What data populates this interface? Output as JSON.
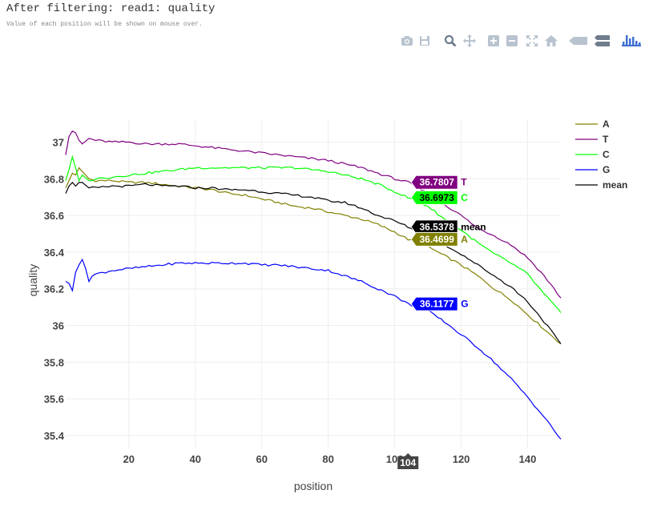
{
  "header": {
    "title": "After filtering: read1: quality",
    "subtitle": "Value of each position will be shown on mouse over."
  },
  "modebar": [
    {
      "name": "camera-icon"
    },
    {
      "name": "save-icon"
    },
    {
      "name": "zoom-icon"
    },
    {
      "name": "pan-icon"
    },
    {
      "name": "zoom-in-icon"
    },
    {
      "name": "zoom-out-icon"
    },
    {
      "name": "autoscale-icon"
    },
    {
      "name": "home-icon"
    },
    {
      "name": "hover-closest-icon"
    },
    {
      "name": "hover-compare-icon"
    },
    {
      "name": "plotly-logo-icon"
    }
  ],
  "chart_data": {
    "type": "line",
    "xlabel": "position",
    "ylabel": "quality",
    "xlim": [
      1,
      150
    ],
    "ylim": [
      35.33,
      37.12
    ],
    "x_ticks": [
      20,
      40,
      60,
      80,
      100,
      120,
      140
    ],
    "y_ticks": [
      35.4,
      35.6,
      35.8,
      36,
      36.2,
      36.4,
      36.6,
      36.8,
      37
    ],
    "y_tick_labels": [
      "35.4",
      "35.6",
      "35.8",
      "36",
      "36.2",
      "36.4",
      "36.6",
      "36.8",
      "37"
    ],
    "grid": true,
    "legend_position": "top-right",
    "series": [
      {
        "name": "A",
        "color": "#808000",
        "points": [
          [
            1,
            36.75
          ],
          [
            2,
            36.79
          ],
          [
            3,
            36.83
          ],
          [
            4,
            36.82
          ],
          [
            5,
            36.86
          ],
          [
            6,
            36.84
          ],
          [
            8,
            36.8
          ],
          [
            10,
            36.79
          ],
          [
            15,
            36.79
          ],
          [
            20,
            36.78
          ],
          [
            25,
            36.78
          ],
          [
            30,
            36.77
          ],
          [
            35,
            36.76
          ],
          [
            40,
            36.75
          ],
          [
            45,
            36.74
          ],
          [
            50,
            36.72
          ],
          [
            55,
            36.71
          ],
          [
            60,
            36.69
          ],
          [
            65,
            36.67
          ],
          [
            70,
            36.65
          ],
          [
            75,
            36.64
          ],
          [
            80,
            36.62
          ],
          [
            85,
            36.6
          ],
          [
            90,
            36.58
          ],
          [
            95,
            36.55
          ],
          [
            100,
            36.51
          ],
          [
            104,
            36.4699
          ],
          [
            110,
            36.43
          ],
          [
            115,
            36.38
          ],
          [
            120,
            36.33
          ],
          [
            125,
            36.27
          ],
          [
            130,
            36.2
          ],
          [
            135,
            36.14
          ],
          [
            140,
            36.06
          ],
          [
            145,
            35.98
          ],
          [
            150,
            35.9
          ]
        ]
      },
      {
        "name": "T",
        "color": "#800080",
        "points": [
          [
            1,
            36.93
          ],
          [
            2,
            37.03
          ],
          [
            3,
            37.06
          ],
          [
            4,
            37.05
          ],
          [
            5,
            37.01
          ],
          [
            6,
            36.99
          ],
          [
            8,
            37.02
          ],
          [
            10,
            37.01
          ],
          [
            15,
            37.0
          ],
          [
            20,
            37.0
          ],
          [
            25,
            36.99
          ],
          [
            30,
            36.99
          ],
          [
            35,
            36.99
          ],
          [
            40,
            36.98
          ],
          [
            45,
            36.97
          ],
          [
            50,
            36.96
          ],
          [
            55,
            36.95
          ],
          [
            60,
            36.94
          ],
          [
            65,
            36.93
          ],
          [
            70,
            36.92
          ],
          [
            75,
            36.91
          ],
          [
            80,
            36.9
          ],
          [
            85,
            36.88
          ],
          [
            90,
            36.86
          ],
          [
            95,
            36.83
          ],
          [
            100,
            36.8
          ],
          [
            104,
            36.7807
          ],
          [
            110,
            36.72
          ],
          [
            115,
            36.66
          ],
          [
            120,
            36.6
          ],
          [
            125,
            36.53
          ],
          [
            130,
            36.49
          ],
          [
            135,
            36.44
          ],
          [
            140,
            36.37
          ],
          [
            145,
            36.27
          ],
          [
            150,
            36.15
          ]
        ]
      },
      {
        "name": "C",
        "color": "#00ff00",
        "points": [
          [
            1,
            36.79
          ],
          [
            2,
            36.85
          ],
          [
            3,
            36.92
          ],
          [
            4,
            36.86
          ],
          [
            5,
            36.79
          ],
          [
            6,
            36.82
          ],
          [
            8,
            36.79
          ],
          [
            10,
            36.8
          ],
          [
            15,
            36.81
          ],
          [
            20,
            36.82
          ],
          [
            25,
            36.83
          ],
          [
            30,
            36.84
          ],
          [
            35,
            36.85
          ],
          [
            40,
            36.86
          ],
          [
            45,
            36.86
          ],
          [
            50,
            36.86
          ],
          [
            55,
            36.86
          ],
          [
            60,
            36.86
          ],
          [
            65,
            36.86
          ],
          [
            70,
            36.86
          ],
          [
            75,
            36.85
          ],
          [
            80,
            36.84
          ],
          [
            85,
            36.82
          ],
          [
            90,
            36.8
          ],
          [
            95,
            36.77
          ],
          [
            100,
            36.73
          ],
          [
            104,
            36.6973
          ],
          [
            110,
            36.65
          ],
          [
            115,
            36.58
          ],
          [
            120,
            36.52
          ],
          [
            125,
            36.45
          ],
          [
            130,
            36.39
          ],
          [
            135,
            36.34
          ],
          [
            140,
            36.28
          ],
          [
            145,
            36.17
          ],
          [
            150,
            36.07
          ]
        ]
      },
      {
        "name": "G",
        "color": "#0000ff",
        "points": [
          [
            1,
            36.24
          ],
          [
            2,
            36.23
          ],
          [
            3,
            36.19
          ],
          [
            4,
            36.29
          ],
          [
            5,
            36.33
          ],
          [
            6,
            36.36
          ],
          [
            7,
            36.31
          ],
          [
            8,
            36.24
          ],
          [
            9,
            36.27
          ],
          [
            10,
            36.28
          ],
          [
            15,
            36.3
          ],
          [
            20,
            36.31
          ],
          [
            25,
            36.32
          ],
          [
            30,
            36.33
          ],
          [
            35,
            36.34
          ],
          [
            40,
            36.34
          ],
          [
            45,
            36.34
          ],
          [
            50,
            36.34
          ],
          [
            55,
            36.34
          ],
          [
            60,
            36.33
          ],
          [
            65,
            36.33
          ],
          [
            70,
            36.32
          ],
          [
            75,
            36.31
          ],
          [
            80,
            36.3
          ],
          [
            85,
            36.27
          ],
          [
            90,
            36.24
          ],
          [
            95,
            36.2
          ],
          [
            100,
            36.16
          ],
          [
            104,
            36.1177
          ],
          [
            110,
            36.08
          ],
          [
            115,
            36.02
          ],
          [
            120,
            35.95
          ],
          [
            125,
            35.88
          ],
          [
            130,
            35.8
          ],
          [
            135,
            35.71
          ],
          [
            140,
            35.61
          ],
          [
            145,
            35.5
          ],
          [
            150,
            35.38
          ]
        ]
      },
      {
        "name": "mean",
        "color": "#000000",
        "points": [
          [
            1,
            36.72
          ],
          [
            2,
            36.76
          ],
          [
            3,
            36.78
          ],
          [
            4,
            36.76
          ],
          [
            5,
            36.78
          ],
          [
            6,
            36.78
          ],
          [
            8,
            36.75
          ],
          [
            10,
            36.75
          ],
          [
            15,
            36.76
          ],
          [
            20,
            36.76
          ],
          [
            25,
            36.77
          ],
          [
            30,
            36.76
          ],
          [
            35,
            36.76
          ],
          [
            40,
            36.75
          ],
          [
            45,
            36.75
          ],
          [
            50,
            36.74
          ],
          [
            55,
            36.74
          ],
          [
            60,
            36.73
          ],
          [
            65,
            36.72
          ],
          [
            70,
            36.71
          ],
          [
            75,
            36.7
          ],
          [
            80,
            36.68
          ],
          [
            85,
            36.67
          ],
          [
            90,
            36.64
          ],
          [
            95,
            36.6
          ],
          [
            100,
            36.57
          ],
          [
            104,
            36.5378
          ],
          [
            110,
            36.49
          ],
          [
            115,
            36.44
          ],
          [
            120,
            36.39
          ],
          [
            125,
            36.33
          ],
          [
            130,
            36.27
          ],
          [
            135,
            36.21
          ],
          [
            140,
            36.13
          ],
          [
            145,
            36.02
          ],
          [
            150,
            35.9
          ]
        ]
      }
    ],
    "hover": {
      "x": 104,
      "x_label": "104",
      "labels": [
        {
          "series": "T",
          "value": "36.7807",
          "text_color": "#ffffff"
        },
        {
          "series": "C",
          "value": "36.6973",
          "text_color": "#000000"
        },
        {
          "series": "mean",
          "value": "36.5378",
          "text_color": "#ffffff"
        },
        {
          "series": "A",
          "value": "36.4699",
          "text_color": "#ffffff"
        },
        {
          "series": "G",
          "value": "36.1177",
          "text_color": "#ffffff"
        }
      ]
    }
  }
}
